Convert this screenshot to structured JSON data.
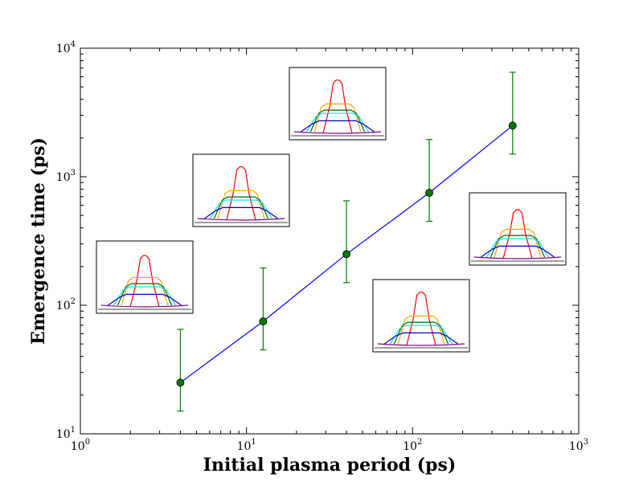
{
  "chart_data": {
    "type": "scatter",
    "title": "",
    "xlabel": "Initial plasma period (ps)",
    "ylabel": "Emergence time (ps)",
    "xscale": "log",
    "yscale": "log",
    "xlim": [
      1,
      1000
    ],
    "ylim": [
      10,
      10000
    ],
    "x_ticks": [
      {
        "value": 1,
        "base": "10",
        "exp": "0"
      },
      {
        "value": 10,
        "base": "10",
        "exp": "1"
      },
      {
        "value": 100,
        "base": "10",
        "exp": "2"
      },
      {
        "value": 1000,
        "base": "10",
        "exp": "3"
      }
    ],
    "y_ticks": [
      {
        "value": 10,
        "base": "10",
        "exp": "1"
      },
      {
        "value": 100,
        "base": "10",
        "exp": "2"
      },
      {
        "value": 1000,
        "base": "10",
        "exp": "3"
      },
      {
        "value": 10000,
        "base": "10",
        "exp": "4"
      }
    ],
    "grid": false,
    "series": [
      {
        "line_color": "#0000ff",
        "marker_color": "#007a00",
        "errorbar_color": "#008000",
        "points": [
          {
            "x": 4,
            "y": 25,
            "y_low": 15,
            "y_high": 65
          },
          {
            "x": 12.6,
            "y": 75,
            "y_low": 45,
            "y_high": 195
          },
          {
            "x": 40,
            "y": 250,
            "y_low": 150,
            "y_high": 650
          },
          {
            "x": 126,
            "y": 750,
            "y_low": 450,
            "y_high": 1950
          },
          {
            "x": 400,
            "y": 2500,
            "y_low": 1500,
            "y_high": 6500
          }
        ]
      }
    ],
    "insets": [
      {
        "name": "inset-1",
        "profile_colors": [
          "#ff0000",
          "#ffa500",
          "#006400",
          "#00e5e5",
          "#0000cd",
          "#800080"
        ]
      },
      {
        "name": "inset-2",
        "profile_colors": [
          "#ff0000",
          "#ffa500",
          "#006400",
          "#00e5e5",
          "#0000cd",
          "#800080"
        ]
      },
      {
        "name": "inset-3",
        "profile_colors": [
          "#ff0000",
          "#ffa500",
          "#006400",
          "#00e5e5",
          "#0000cd",
          "#800080"
        ]
      },
      {
        "name": "inset-4",
        "profile_colors": [
          "#ff0000",
          "#ffa500",
          "#006400",
          "#00e5e5",
          "#0000cd",
          "#800080"
        ]
      },
      {
        "name": "inset-5",
        "profile_colors": [
          "#ff0000",
          "#ffa500",
          "#006400",
          "#00e5e5",
          "#0000cd",
          "#800080"
        ]
      }
    ]
  }
}
